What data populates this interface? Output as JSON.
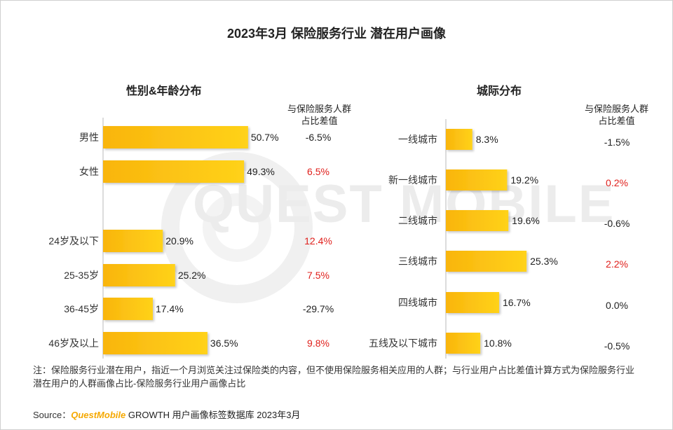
{
  "title": "2023年3月 保险服务行业 潜在用户画像",
  "watermark": "QUEST MOBILE",
  "colors": {
    "bar_start": "#f9b50d",
    "bar_end": "#ffd21a",
    "positive": "#e0201c",
    "normal": "#222222",
    "brand": "#f5a800"
  },
  "left_panel": {
    "title": "性别&年龄分布",
    "diff_header": [
      "与保险服务人群",
      "占比差值"
    ]
  },
  "right_panel": {
    "title": "城际分布",
    "diff_header": [
      "与保险服务人群",
      "占比差值"
    ]
  },
  "chart_data": [
    {
      "type": "bar",
      "orientation": "horizontal",
      "title": "性别&年龄分布",
      "groups": [
        {
          "categories": [
            "男性",
            "女性"
          ],
          "values": [
            50.7,
            49.3
          ],
          "value_labels": [
            "50.7%",
            "49.3%"
          ],
          "diff": [
            "-6.5%",
            "6.5%"
          ],
          "diff_positive": [
            false,
            true
          ]
        },
        {
          "categories": [
            "24岁及以下",
            "25-35岁",
            "36-45岁",
            "46岁及以上"
          ],
          "values": [
            20.9,
            25.2,
            17.4,
            36.5
          ],
          "value_labels": [
            "20.9%",
            "25.2%",
            "17.4%",
            "36.5%"
          ],
          "diff": [
            "12.4%",
            "7.5%",
            "-29.7%",
            "9.8%"
          ],
          "diff_positive": [
            true,
            true,
            false,
            true
          ]
        }
      ],
      "unit": "%"
    },
    {
      "type": "bar",
      "orientation": "horizontal",
      "title": "城际分布",
      "categories": [
        "一线城市",
        "新一线城市",
        "二线城市",
        "三线城市",
        "四线城市",
        "五线及以下城市"
      ],
      "values": [
        8.3,
        19.2,
        19.6,
        25.3,
        16.7,
        10.8
      ],
      "value_labels": [
        "8.3%",
        "19.2%",
        "19.6%",
        "25.3%",
        "16.7%",
        "10.8%"
      ],
      "diff": [
        "-1.5%",
        "0.2%",
        "-0.6%",
        "2.2%",
        "0.0%",
        "-0.5%"
      ],
      "diff_positive": [
        false,
        true,
        false,
        true,
        false,
        false
      ],
      "unit": "%"
    }
  ],
  "note": "注：保险服务行业潜在用户，指近一个月浏览关注过保险类的内容，但不使用保险服务相关应用的人群；与行业用户占比差值计算方式为保险服务行业潜在用户的人群画像占比-保险服务行业用户画像占比",
  "source": {
    "label": "Source：",
    "brand": "QuestMobile",
    "rest": "GROWTH 用户画像标签数据库 2023年3月"
  }
}
